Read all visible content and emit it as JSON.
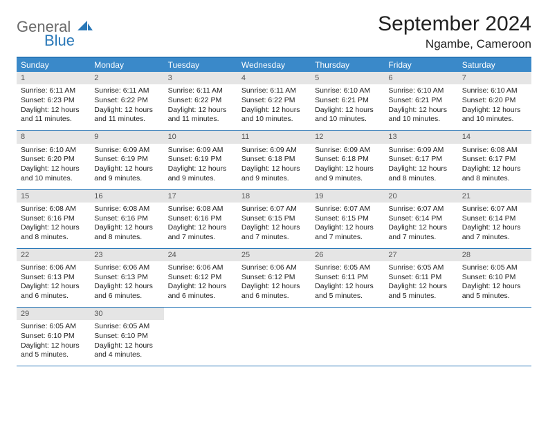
{
  "brand": {
    "word1": "General",
    "word2": "Blue",
    "logo_color": "#2a78b8"
  },
  "title": "September 2024",
  "location": "Ngambe, Cameroon",
  "colors": {
    "header_bar": "#3a89c9",
    "border": "#2a78b8",
    "daynum_bg": "#e5e5e5",
    "text": "#222222"
  },
  "weekdays": [
    "Sunday",
    "Monday",
    "Tuesday",
    "Wednesday",
    "Thursday",
    "Friday",
    "Saturday"
  ],
  "weeks": [
    [
      {
        "n": "1",
        "sunrise": "Sunrise: 6:11 AM",
        "sunset": "Sunset: 6:23 PM",
        "daylight": "Daylight: 12 hours and 11 minutes."
      },
      {
        "n": "2",
        "sunrise": "Sunrise: 6:11 AM",
        "sunset": "Sunset: 6:22 PM",
        "daylight": "Daylight: 12 hours and 11 minutes."
      },
      {
        "n": "3",
        "sunrise": "Sunrise: 6:11 AM",
        "sunset": "Sunset: 6:22 PM",
        "daylight": "Daylight: 12 hours and 11 minutes."
      },
      {
        "n": "4",
        "sunrise": "Sunrise: 6:11 AM",
        "sunset": "Sunset: 6:22 PM",
        "daylight": "Daylight: 12 hours and 10 minutes."
      },
      {
        "n": "5",
        "sunrise": "Sunrise: 6:10 AM",
        "sunset": "Sunset: 6:21 PM",
        "daylight": "Daylight: 12 hours and 10 minutes."
      },
      {
        "n": "6",
        "sunrise": "Sunrise: 6:10 AM",
        "sunset": "Sunset: 6:21 PM",
        "daylight": "Daylight: 12 hours and 10 minutes."
      },
      {
        "n": "7",
        "sunrise": "Sunrise: 6:10 AM",
        "sunset": "Sunset: 6:20 PM",
        "daylight": "Daylight: 12 hours and 10 minutes."
      }
    ],
    [
      {
        "n": "8",
        "sunrise": "Sunrise: 6:10 AM",
        "sunset": "Sunset: 6:20 PM",
        "daylight": "Daylight: 12 hours and 10 minutes."
      },
      {
        "n": "9",
        "sunrise": "Sunrise: 6:09 AM",
        "sunset": "Sunset: 6:19 PM",
        "daylight": "Daylight: 12 hours and 9 minutes."
      },
      {
        "n": "10",
        "sunrise": "Sunrise: 6:09 AM",
        "sunset": "Sunset: 6:19 PM",
        "daylight": "Daylight: 12 hours and 9 minutes."
      },
      {
        "n": "11",
        "sunrise": "Sunrise: 6:09 AM",
        "sunset": "Sunset: 6:18 PM",
        "daylight": "Daylight: 12 hours and 9 minutes."
      },
      {
        "n": "12",
        "sunrise": "Sunrise: 6:09 AM",
        "sunset": "Sunset: 6:18 PM",
        "daylight": "Daylight: 12 hours and 9 minutes."
      },
      {
        "n": "13",
        "sunrise": "Sunrise: 6:09 AM",
        "sunset": "Sunset: 6:17 PM",
        "daylight": "Daylight: 12 hours and 8 minutes."
      },
      {
        "n": "14",
        "sunrise": "Sunrise: 6:08 AM",
        "sunset": "Sunset: 6:17 PM",
        "daylight": "Daylight: 12 hours and 8 minutes."
      }
    ],
    [
      {
        "n": "15",
        "sunrise": "Sunrise: 6:08 AM",
        "sunset": "Sunset: 6:16 PM",
        "daylight": "Daylight: 12 hours and 8 minutes."
      },
      {
        "n": "16",
        "sunrise": "Sunrise: 6:08 AM",
        "sunset": "Sunset: 6:16 PM",
        "daylight": "Daylight: 12 hours and 8 minutes."
      },
      {
        "n": "17",
        "sunrise": "Sunrise: 6:08 AM",
        "sunset": "Sunset: 6:16 PM",
        "daylight": "Daylight: 12 hours and 7 minutes."
      },
      {
        "n": "18",
        "sunrise": "Sunrise: 6:07 AM",
        "sunset": "Sunset: 6:15 PM",
        "daylight": "Daylight: 12 hours and 7 minutes."
      },
      {
        "n": "19",
        "sunrise": "Sunrise: 6:07 AM",
        "sunset": "Sunset: 6:15 PM",
        "daylight": "Daylight: 12 hours and 7 minutes."
      },
      {
        "n": "20",
        "sunrise": "Sunrise: 6:07 AM",
        "sunset": "Sunset: 6:14 PM",
        "daylight": "Daylight: 12 hours and 7 minutes."
      },
      {
        "n": "21",
        "sunrise": "Sunrise: 6:07 AM",
        "sunset": "Sunset: 6:14 PM",
        "daylight": "Daylight: 12 hours and 7 minutes."
      }
    ],
    [
      {
        "n": "22",
        "sunrise": "Sunrise: 6:06 AM",
        "sunset": "Sunset: 6:13 PM",
        "daylight": "Daylight: 12 hours and 6 minutes."
      },
      {
        "n": "23",
        "sunrise": "Sunrise: 6:06 AM",
        "sunset": "Sunset: 6:13 PM",
        "daylight": "Daylight: 12 hours and 6 minutes."
      },
      {
        "n": "24",
        "sunrise": "Sunrise: 6:06 AM",
        "sunset": "Sunset: 6:12 PM",
        "daylight": "Daylight: 12 hours and 6 minutes."
      },
      {
        "n": "25",
        "sunrise": "Sunrise: 6:06 AM",
        "sunset": "Sunset: 6:12 PM",
        "daylight": "Daylight: 12 hours and 6 minutes."
      },
      {
        "n": "26",
        "sunrise": "Sunrise: 6:05 AM",
        "sunset": "Sunset: 6:11 PM",
        "daylight": "Daylight: 12 hours and 5 minutes."
      },
      {
        "n": "27",
        "sunrise": "Sunrise: 6:05 AM",
        "sunset": "Sunset: 6:11 PM",
        "daylight": "Daylight: 12 hours and 5 minutes."
      },
      {
        "n": "28",
        "sunrise": "Sunrise: 6:05 AM",
        "sunset": "Sunset: 6:10 PM",
        "daylight": "Daylight: 12 hours and 5 minutes."
      }
    ],
    [
      {
        "n": "29",
        "sunrise": "Sunrise: 6:05 AM",
        "sunset": "Sunset: 6:10 PM",
        "daylight": "Daylight: 12 hours and 5 minutes."
      },
      {
        "n": "30",
        "sunrise": "Sunrise: 6:05 AM",
        "sunset": "Sunset: 6:10 PM",
        "daylight": "Daylight: 12 hours and 4 minutes."
      },
      null,
      null,
      null,
      null,
      null
    ]
  ]
}
